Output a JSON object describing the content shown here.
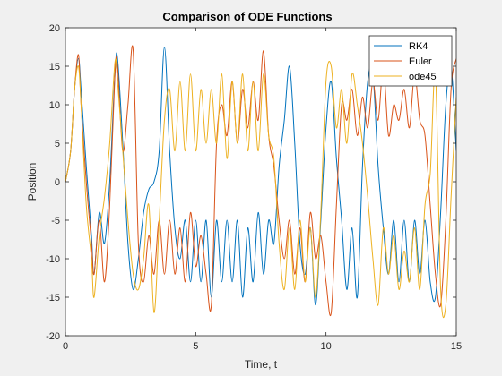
{
  "chart_data": {
    "type": "line",
    "title": "Comparison  of ODE Functions",
    "xlabel": "Time, t",
    "ylabel": "Position",
    "xlim": [
      0,
      15
    ],
    "ylim": [
      -20,
      20
    ],
    "xticks": [
      0,
      5,
      10,
      15
    ],
    "yticks": [
      -20,
      -15,
      -10,
      -5,
      0,
      5,
      10,
      15,
      20
    ],
    "grid": false,
    "legend_position": "top-right",
    "series": [
      {
        "name": "RK4",
        "color": "#0072BD",
        "x": [
          0,
          0.2,
          0.35,
          0.5,
          0.6,
          0.8,
          1.0,
          1.1,
          1.3,
          1.5,
          1.7,
          1.9,
          2.0,
          2.2,
          2.4,
          2.6,
          2.8,
          3.0,
          3.2,
          3.4,
          3.6,
          3.8,
          4.0,
          4.2,
          4.4,
          4.6,
          4.8,
          5.0,
          5.2,
          5.4,
          5.6,
          5.8,
          6.0,
          6.2,
          6.4,
          6.6,
          6.8,
          7.0,
          7.2,
          7.4,
          7.6,
          7.8,
          8.0,
          8.2,
          8.4,
          8.6,
          8.8,
          9.0,
          9.2,
          9.4,
          9.6,
          9.8,
          10.0,
          10.2,
          10.4,
          10.6,
          10.8,
          11.0,
          11.2,
          11.4,
          11.6,
          11.8,
          12.0,
          12.2,
          12.4,
          12.6,
          12.8,
          13.0,
          13.2,
          13.4,
          13.6,
          13.8,
          14.0,
          14.2,
          14.4,
          14.6,
          14.8,
          15.0
        ],
        "y": [
          0,
          4,
          12,
          16,
          12,
          2,
          -7,
          -12,
          -4,
          -8,
          0,
          14,
          16,
          5,
          -8,
          -14,
          -10,
          -4,
          -1,
          0,
          4,
          17.5,
          4,
          -6,
          -10,
          -5,
          -13,
          -5,
          -13,
          -5,
          -15,
          -5,
          -13,
          -5,
          -13,
          -5,
          -15,
          -6,
          -13,
          -4,
          -12,
          -5,
          -8,
          2,
          8,
          15,
          5,
          -8,
          -12,
          -6,
          -16,
          -5,
          7,
          13,
          3,
          -5,
          -14,
          -6,
          -15,
          2,
          13,
          14,
          2,
          -6,
          -12,
          -5,
          -13,
          -5,
          -13,
          -5,
          -12,
          -5,
          -13,
          -15,
          -4,
          10,
          15,
          4
        ]
      },
      {
        "name": "Euler",
        "color": "#D95319",
        "x": [
          0,
          0.2,
          0.35,
          0.5,
          0.6,
          0.8,
          1.0,
          1.1,
          1.3,
          1.5,
          1.7,
          1.9,
          2.0,
          2.2,
          2.4,
          2.6,
          2.8,
          3.0,
          3.2,
          3.4,
          3.6,
          3.8,
          4.0,
          4.2,
          4.4,
          4.6,
          4.8,
          5.0,
          5.2,
          5.4,
          5.6,
          5.8,
          6.0,
          6.2,
          6.4,
          6.6,
          6.8,
          7.0,
          7.2,
          7.4,
          7.6,
          7.8,
          8.0,
          8.2,
          8.4,
          8.6,
          8.8,
          9.0,
          9.2,
          9.4,
          9.6,
          9.8,
          10.0,
          10.2,
          10.4,
          10.6,
          10.8,
          11.0,
          11.2,
          11.4,
          11.6,
          11.8,
          12.0,
          12.2,
          12.4,
          12.6,
          12.8,
          13.0,
          13.2,
          13.4,
          13.6,
          13.8,
          14.0,
          14.2,
          14.4,
          14.6,
          14.8,
          15.0
        ],
        "y": [
          0,
          4,
          12,
          16.5,
          10,
          0,
          -8,
          -12,
          -5,
          -13,
          -3,
          14,
          15,
          4,
          10,
          17,
          -8,
          -13,
          -7,
          -12,
          -5,
          -12,
          -5,
          -12,
          -6,
          -13,
          -4,
          -11,
          -7,
          -12,
          -16,
          5,
          10,
          6,
          13,
          5,
          12,
          7,
          13,
          8,
          17,
          6,
          2,
          -5,
          -10,
          -5,
          -12,
          -6,
          -13,
          -4,
          -10,
          -7,
          -13,
          -17,
          -3,
          10,
          8,
          12,
          6,
          11,
          7,
          13,
          8,
          15,
          6,
          10,
          8,
          12,
          7,
          14,
          8,
          6,
          -3,
          -12,
          -16,
          -5,
          12,
          16
        ]
      },
      {
        "name": "ode45",
        "color": "#EDB120",
        "x": [
          0,
          0.2,
          0.35,
          0.5,
          0.6,
          0.8,
          1.0,
          1.1,
          1.3,
          1.5,
          1.7,
          1.9,
          2.0,
          2.2,
          2.4,
          2.6,
          2.8,
          3.0,
          3.2,
          3.4,
          3.6,
          3.8,
          4.0,
          4.2,
          4.4,
          4.6,
          4.8,
          5.0,
          5.2,
          5.4,
          5.6,
          5.8,
          6.0,
          6.2,
          6.4,
          6.6,
          6.8,
          7.0,
          7.2,
          7.4,
          7.6,
          7.8,
          8.0,
          8.2,
          8.4,
          8.6,
          8.8,
          9.0,
          9.2,
          9.4,
          9.6,
          9.8,
          10.0,
          10.2,
          10.4,
          10.6,
          10.8,
          11.0,
          11.2,
          11.4,
          11.6,
          11.8,
          12.0,
          12.2,
          12.4,
          12.6,
          12.8,
          13.0,
          13.2,
          13.4,
          13.6,
          13.8,
          14.0,
          14.2,
          14.4,
          14.6,
          14.8,
          15.0
        ],
        "y": [
          0,
          4,
          12,
          15,
          10,
          -3,
          -10,
          -15,
          -7,
          -2,
          5,
          15.5,
          13,
          4,
          -5,
          -12,
          -14,
          -10,
          -3,
          -17,
          -5,
          8,
          12,
          4,
          13,
          4,
          14,
          4,
          12,
          5,
          12,
          5,
          14,
          3,
          13,
          5,
          14,
          4,
          13,
          4,
          14,
          6,
          3,
          -8,
          -14,
          -6,
          -14,
          -5,
          -13,
          -6,
          -15,
          -4,
          13,
          15,
          7,
          12,
          5,
          14,
          10,
          5,
          -2,
          -10,
          -16,
          -6,
          -12,
          -7,
          -14,
          -9,
          -13,
          -6,
          -14,
          -3,
          1,
          14,
          -14,
          -16,
          -2,
          11
        ]
      }
    ]
  }
}
